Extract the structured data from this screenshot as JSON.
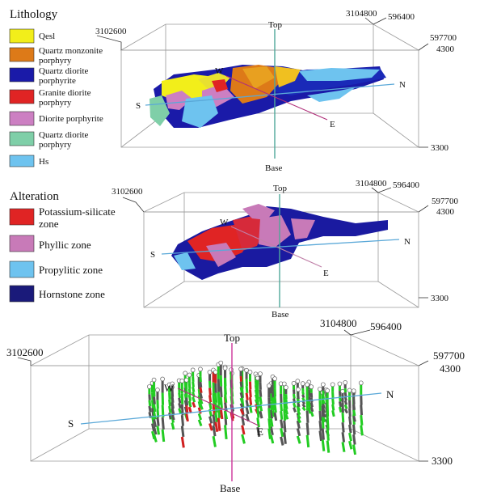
{
  "lithology": {
    "title": "Lithology",
    "legend": [
      {
        "label": "Qesl",
        "color": "#f2ee1a"
      },
      {
        "label": "Quartz monzonite porphyry",
        "color": "#dd7a18"
      },
      {
        "label": "Quartz diorite porphyrite",
        "color": "#1a1aa8"
      },
      {
        "label": "Granite diorite porphyry",
        "color": "#e02424"
      },
      {
        "label": "Diorite porphyrite",
        "color": "#cc7fc2"
      },
      {
        "label": "Quartz diorite porphyry",
        "color": "#7fcfa8"
      },
      {
        "label": "Hs",
        "color": "#6ec3ef"
      }
    ]
  },
  "alteration": {
    "title": "Alteration",
    "legend": [
      {
        "label": "Potassium-silicate zone",
        "color": "#e02424"
      },
      {
        "label": "Phyllic zone",
        "color": "#c87ab8"
      },
      {
        "label": "Propylitic zone",
        "color": "#6ec3ef"
      },
      {
        "label": "Hornstone zone",
        "color": "#1a1a7a"
      }
    ]
  },
  "axes": {
    "top": "Top",
    "base": "Base",
    "west": "W",
    "east": "E",
    "south": "S",
    "north": "N",
    "coord_left": "3102600",
    "coord_back_a": "3104800",
    "coord_back_b": "596400",
    "coord_right_a": "597700",
    "coord_right_b": "4300",
    "coord_bottom": "3300"
  },
  "colors": {
    "top_base_axis_1": "#4fa89a",
    "top_base_axis_2": "#4fa89a",
    "top_base_axis_3": "#cc3399",
    "ns_axis": "#5aa8d8",
    "ew_axis": "#b0307a",
    "drillhole_green": "#22cc22",
    "drillhole_grey": "#555555",
    "drillhole_red": "#d02020"
  }
}
